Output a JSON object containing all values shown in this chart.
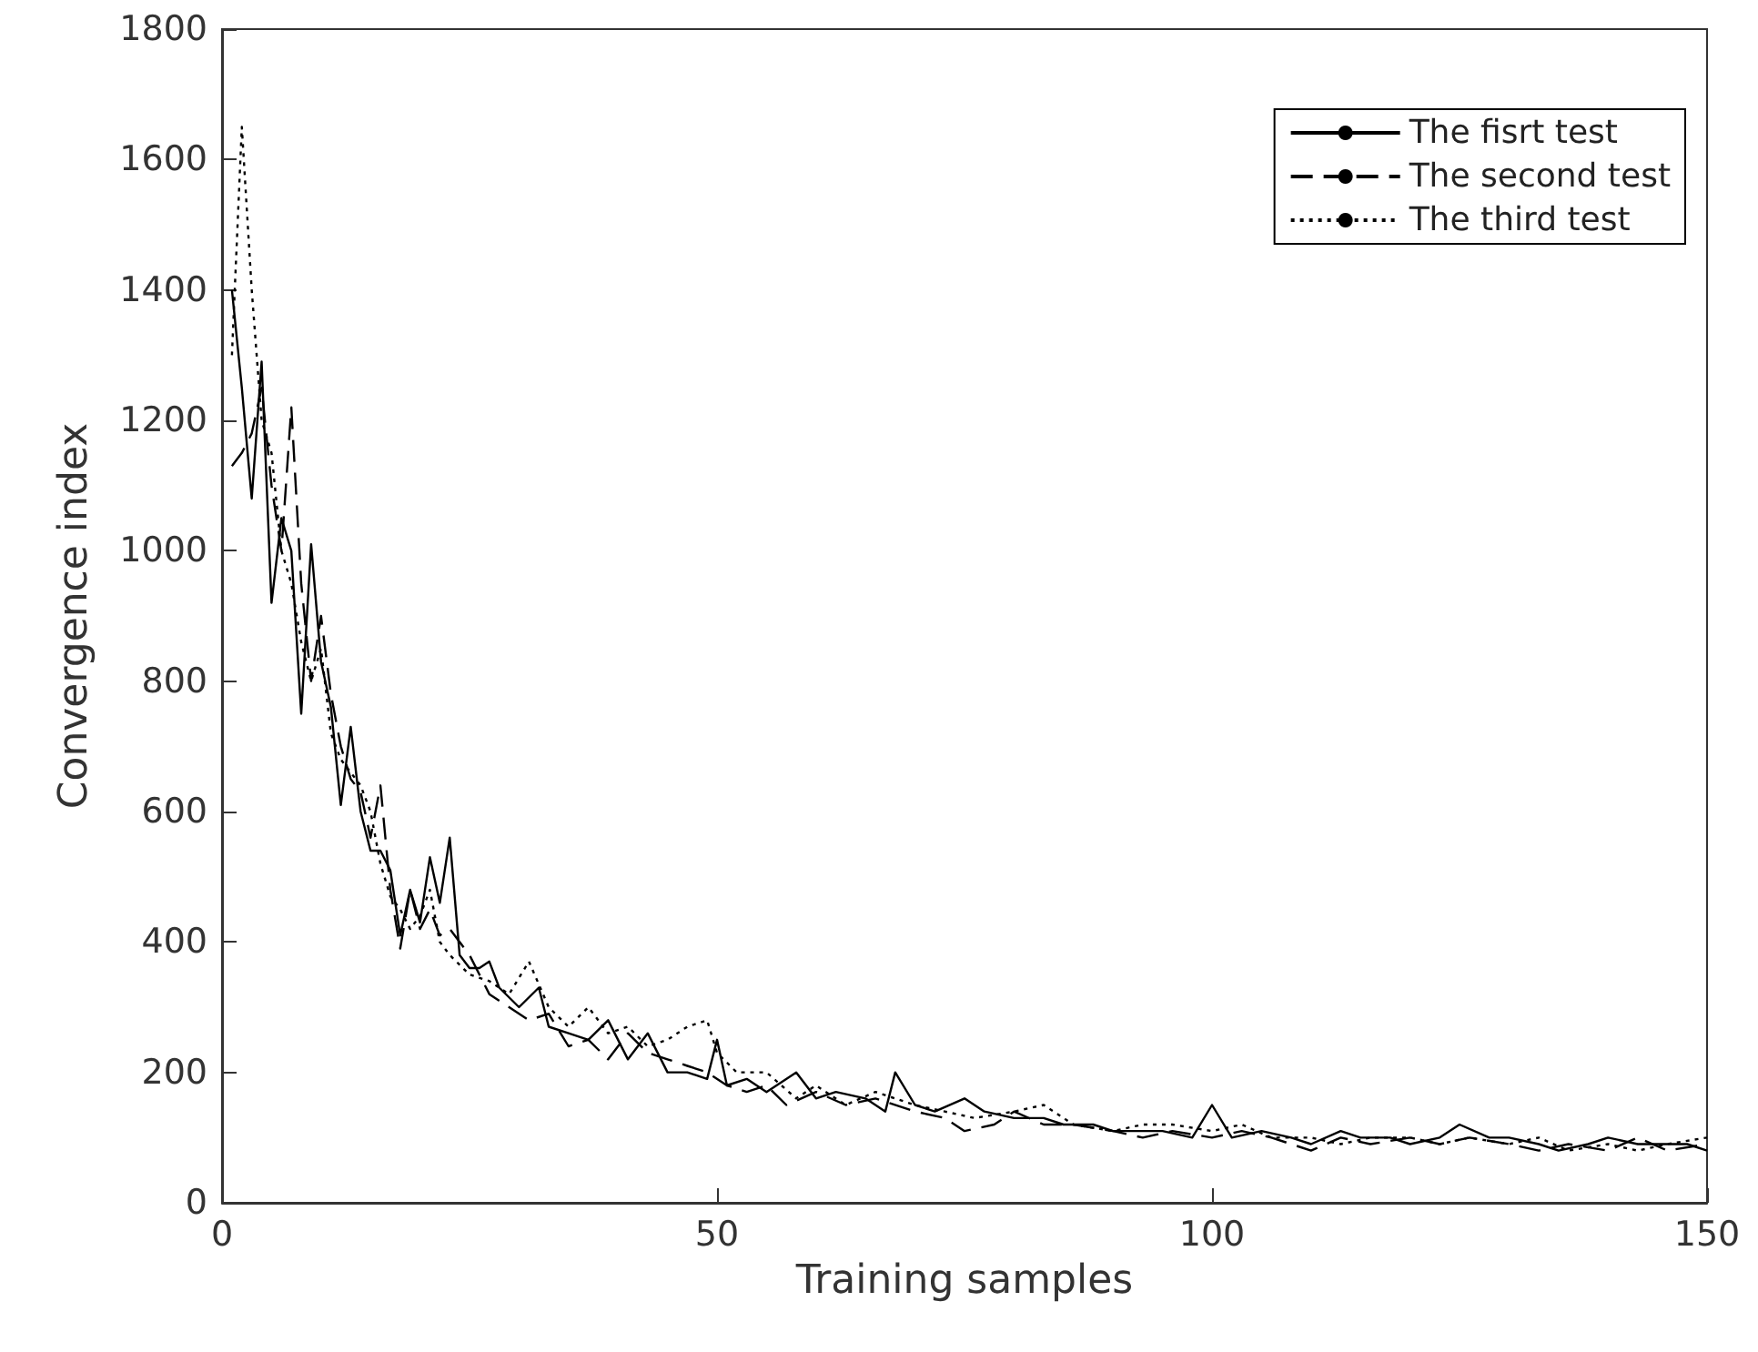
{
  "chart_data": {
    "type": "line",
    "xlabel": "Training samples",
    "ylabel": "Convergence index",
    "xlim": [
      0,
      150
    ],
    "ylim": [
      0,
      1800
    ],
    "xticks": [
      0,
      50,
      100,
      150
    ],
    "yticks": [
      0,
      200,
      400,
      600,
      800,
      1000,
      1200,
      1400,
      1600,
      1800
    ],
    "legend": "top right",
    "marker": "none",
    "series": [
      {
        "name": "The fisrt test",
        "color": "#000000",
        "line_style": "solid",
        "x": [
          1,
          2,
          3,
          4,
          5,
          6,
          7,
          8,
          9,
          10,
          11,
          12,
          13,
          14,
          15,
          16,
          17,
          18,
          19,
          20,
          21,
          22,
          23,
          24,
          25,
          26,
          27,
          28,
          30,
          32,
          33,
          35,
          37,
          39,
          41,
          43,
          45,
          47,
          49,
          50,
          51,
          53,
          55,
          58,
          60,
          62,
          65,
          67,
          68,
          70,
          72,
          75,
          77,
          80,
          83,
          85,
          88,
          90,
          93,
          95,
          98,
          100,
          102,
          105,
          108,
          110,
          113,
          115,
          118,
          120,
          123,
          125,
          128,
          130,
          133,
          135,
          138,
          140,
          143,
          145,
          148,
          150
        ],
        "values": [
          1400,
          1250,
          1080,
          1290,
          920,
          1050,
          1000,
          750,
          1010,
          830,
          760,
          610,
          730,
          600,
          540,
          540,
          510,
          410,
          480,
          430,
          530,
          460,
          560,
          380,
          360,
          360,
          370,
          330,
          300,
          330,
          270,
          260,
          250,
          280,
          220,
          260,
          200,
          200,
          190,
          250,
          180,
          190,
          170,
          200,
          160,
          170,
          160,
          140,
          200,
          150,
          140,
          160,
          140,
          130,
          130,
          120,
          120,
          110,
          110,
          110,
          100,
          150,
          100,
          110,
          100,
          90,
          110,
          100,
          100,
          90,
          100,
          120,
          100,
          100,
          90,
          80,
          90,
          100,
          90,
          90,
          90,
          80
        ]
      },
      {
        "name": "The second test",
        "color": "#000000",
        "line_style": "dashed",
        "x": [
          1,
          2,
          3,
          4,
          5,
          6,
          7,
          8,
          9,
          10,
          11,
          12,
          13,
          14,
          15,
          16,
          17,
          18,
          19,
          20,
          21,
          22,
          23,
          25,
          27,
          29,
          31,
          33,
          35,
          37,
          39,
          41,
          43,
          45,
          47,
          49,
          51,
          53,
          55,
          57,
          60,
          63,
          66,
          70,
          73,
          75,
          78,
          80,
          83,
          86,
          90,
          93,
          96,
          100,
          103,
          106,
          110,
          113,
          116,
          120,
          123,
          126,
          130,
          133,
          136,
          140,
          143,
          146,
          150
        ],
        "values": [
          1130,
          1150,
          1180,
          1250,
          1100,
          1000,
          1220,
          950,
          800,
          900,
          780,
          700,
          650,
          630,
          560,
          640,
          480,
          390,
          480,
          420,
          450,
          410,
          420,
          380,
          320,
          300,
          280,
          290,
          240,
          250,
          220,
          260,
          230,
          220,
          210,
          200,
          180,
          170,
          180,
          150,
          170,
          150,
          160,
          140,
          130,
          110,
          120,
          140,
          120,
          120,
          110,
          100,
          110,
          100,
          110,
          100,
          80,
          100,
          90,
          100,
          90,
          100,
          90,
          80,
          90,
          80,
          100,
          80,
          90
        ]
      },
      {
        "name": "The third test",
        "color": "#000000",
        "line_style": "dotted",
        "x": [
          1,
          2,
          3,
          4,
          5,
          6,
          7,
          8,
          9,
          10,
          11,
          12,
          13,
          14,
          15,
          16,
          17,
          18,
          19,
          20,
          21,
          22,
          23,
          25,
          27,
          29,
          31,
          33,
          35,
          37,
          39,
          41,
          43,
          45,
          47,
          49,
          50,
          52,
          55,
          58,
          60,
          63,
          66,
          70,
          73,
          76,
          80,
          83,
          86,
          90,
          93,
          96,
          100,
          103,
          106,
          110,
          113,
          116,
          120,
          123,
          126,
          130,
          133,
          136,
          140,
          143,
          146,
          150
        ],
        "values": [
          1300,
          1650,
          1400,
          1200,
          1150,
          1000,
          950,
          860,
          800,
          850,
          720,
          680,
          660,
          640,
          600,
          520,
          470,
          450,
          420,
          440,
          480,
          400,
          380,
          350,
          340,
          320,
          370,
          300,
          270,
          300,
          260,
          270,
          240,
          250,
          270,
          280,
          230,
          200,
          200,
          160,
          180,
          150,
          170,
          150,
          140,
          130,
          140,
          150,
          120,
          110,
          120,
          120,
          110,
          120,
          100,
          100,
          90,
          100,
          100,
          90,
          100,
          90,
          100,
          80,
          90,
          80,
          90,
          100
        ]
      }
    ]
  }
}
